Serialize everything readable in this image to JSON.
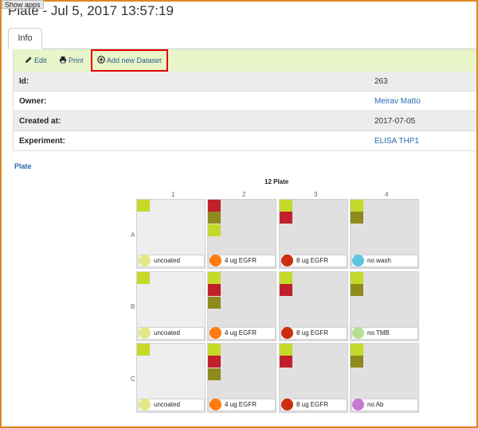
{
  "show_apps_label": "Show apps",
  "title": "Plate - Jul 5, 2017 13:57:19",
  "tabs": [
    {
      "label": "Info"
    }
  ],
  "toolbar": {
    "edit_label": "Edit",
    "print_label": "Print",
    "add_dataset_label": "Add new Dataset",
    "bg_color": "#e8f5c8",
    "highlight_color": "#e00000"
  },
  "fields": {
    "id": {
      "label": "Id:",
      "value": "263"
    },
    "owner": {
      "label": "Owner:",
      "value": "Meirav Matto"
    },
    "created": {
      "label": "Created at:",
      "value": "2017-07-05"
    },
    "experiment": {
      "label": "Experiment:",
      "value": "ELISA THP1"
    }
  },
  "section_link": "Plate",
  "plate": {
    "name": "12 Plate",
    "columns": [
      "1",
      "2",
      "3",
      "4"
    ],
    "rows": [
      "A",
      "B",
      "C"
    ],
    "colors": {
      "lime": "#c5d92a",
      "red": "#c0202a",
      "olive": "#8e8a1e"
    },
    "wells": [
      [
        {
          "squares": [
            "lime"
          ],
          "caption": "uncoated",
          "dot_color": "#e1e88a"
        },
        {
          "squares": [
            "red",
            "olive",
            "lime"
          ],
          "caption": "4 ug EGFR",
          "dot_color": "#ff7a10"
        },
        {
          "squares": [
            "lime",
            "red"
          ],
          "caption": "8 ug EGFR",
          "dot_color": "#cc2e0e"
        },
        {
          "squares": [
            "lime",
            "olive"
          ],
          "caption": "no wash",
          "dot_color": "#5bc4de"
        }
      ],
      [
        {
          "squares": [
            "lime"
          ],
          "caption": "uncoated",
          "dot_color": "#e1e88a"
        },
        {
          "squares": [
            "lime",
            "red",
            "olive"
          ],
          "caption": "4 ug EGFR",
          "dot_color": "#ff7a10"
        },
        {
          "squares": [
            "lime",
            "red"
          ],
          "caption": "8 ug EGFR",
          "dot_color": "#cc2e0e"
        },
        {
          "squares": [
            "lime",
            "olive"
          ],
          "caption": "no TMB",
          "dot_color": "#b6df95"
        }
      ],
      [
        {
          "squares": [
            "lime"
          ],
          "caption": "uncoated",
          "dot_color": "#e1e88a"
        },
        {
          "squares": [
            "lime",
            "red",
            "olive"
          ],
          "caption": "4 ug EGFR",
          "dot_color": "#ff7a10"
        },
        {
          "squares": [
            "lime",
            "red"
          ],
          "caption": "8 ug EGFR",
          "dot_color": "#cc2e0e"
        },
        {
          "squares": [
            "lime",
            "olive"
          ],
          "caption": "no Ab",
          "dot_color": "#c67ad1"
        }
      ]
    ]
  }
}
